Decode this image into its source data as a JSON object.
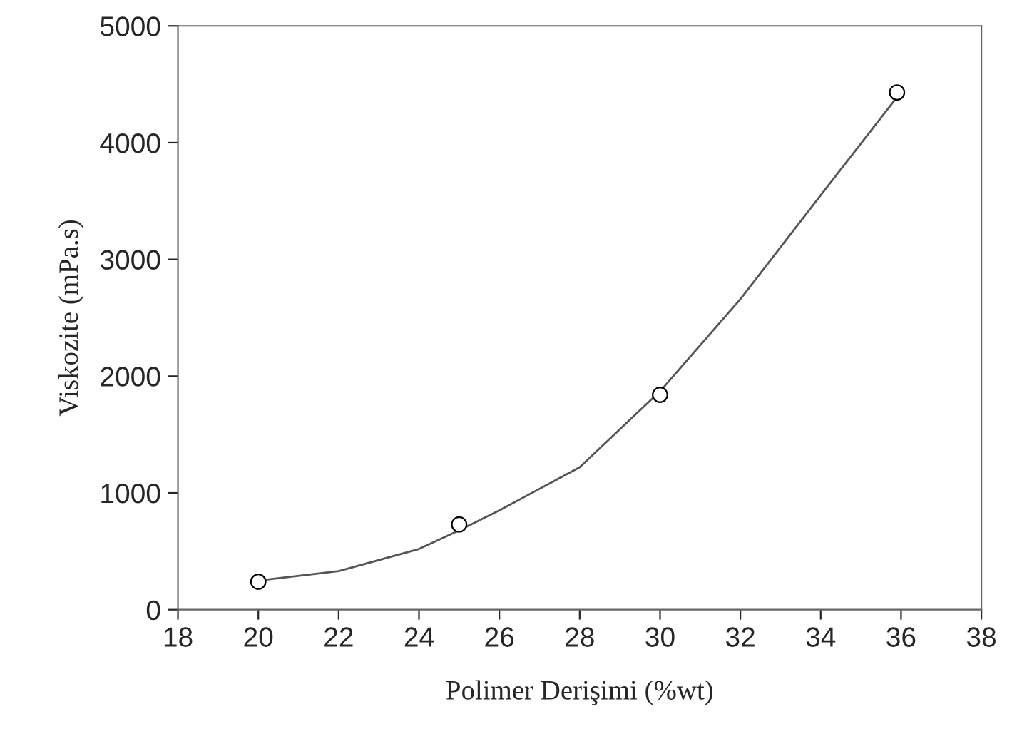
{
  "chart_data": {
    "type": "scatter",
    "xlabel": "Polimer Derişimi (%wt)",
    "ylabel": "Viskozite (mPa.s)",
    "series": [
      {
        "color": "#ffffff",
        "marker": "circle",
        "x": [
          20,
          25,
          30,
          35.9
        ],
        "values": [
          240,
          730,
          1840,
          4430
        ]
      },
      {
        "type": "line",
        "color": "#555555",
        "marker": "none",
        "x": [
          20,
          22,
          24,
          25,
          26,
          28,
          30,
          32,
          34,
          35.9
        ],
        "values": [
          250,
          330,
          520,
          680,
          850,
          1220,
          1870,
          2660,
          3550,
          4390
        ]
      }
    ],
    "xlim": [
      18,
      38
    ],
    "xticks": [
      18,
      20,
      22,
      24,
      26,
      28,
      30,
      32,
      34,
      36,
      38
    ],
    "ylim": [
      0,
      5000
    ],
    "yticks": [
      0,
      1000,
      2000,
      3000,
      4000,
      5000
    ],
    "grid": false,
    "legend": false
  }
}
